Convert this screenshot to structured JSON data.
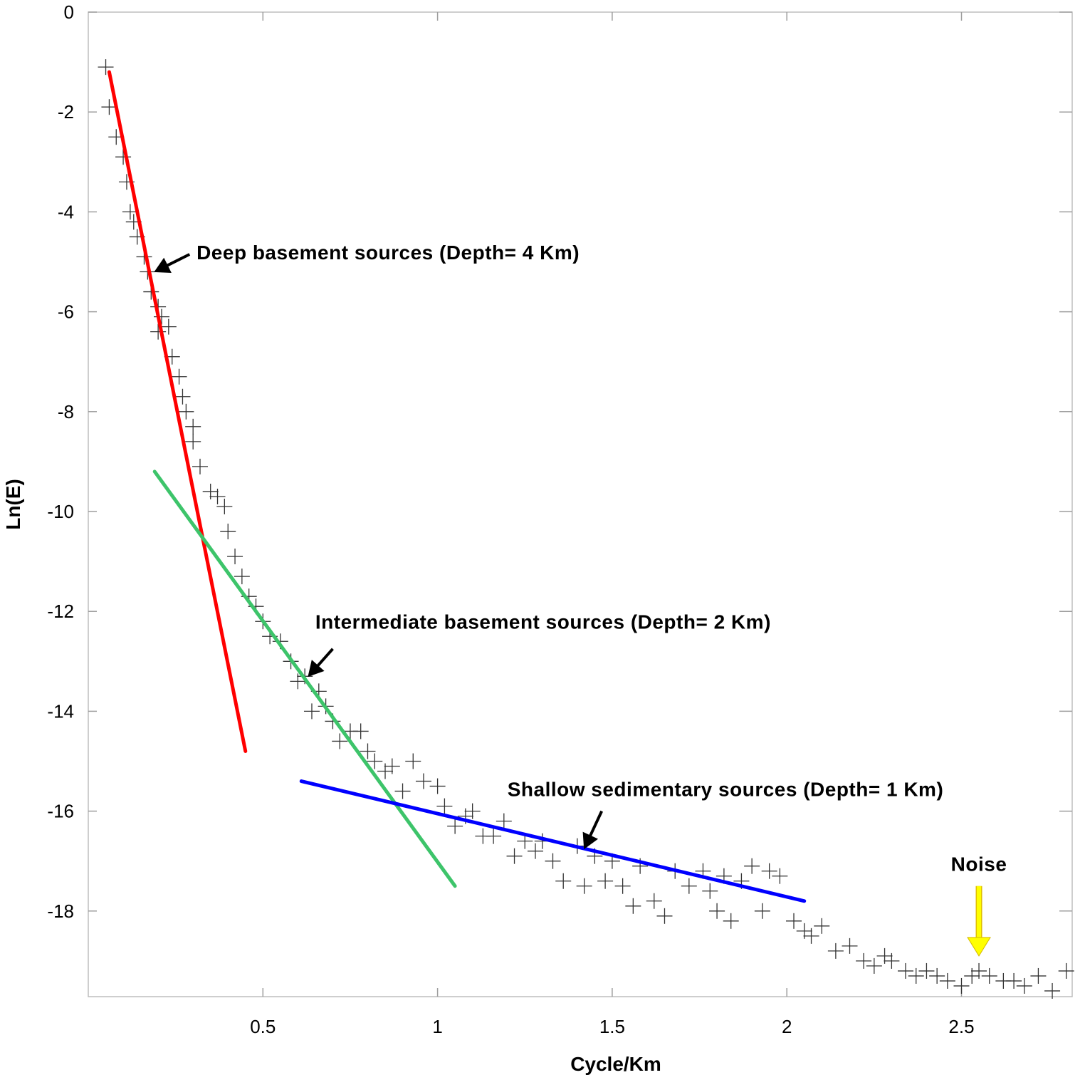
{
  "chart_data": {
    "type": "scatter",
    "title": "",
    "xlabel": "Cycle/Km",
    "ylabel": "Ln(E)",
    "xlim": [
      0,
      2.85
    ],
    "ylim": [
      -19.7,
      0
    ],
    "xticks": [
      0.5,
      1,
      1.5,
      2,
      2.5
    ],
    "xtick_labels": [
      "0.5",
      "1",
      "1.5",
      "2",
      "2.5"
    ],
    "yticks": [
      0,
      -2,
      -4,
      -6,
      -8,
      -10,
      -12,
      -14,
      -16,
      -18
    ],
    "ytick_labels": [
      "0",
      "-2",
      "-4",
      "-6",
      "-8",
      "-10",
      "-12",
      "-14",
      "-16",
      "-18"
    ],
    "grid": false,
    "marker": "plus",
    "points": [
      [
        0.05,
        -1.1
      ],
      [
        0.06,
        -1.9
      ],
      [
        0.08,
        -2.5
      ],
      [
        0.1,
        -2.9
      ],
      [
        0.11,
        -3.4
      ],
      [
        0.12,
        -4.0
      ],
      [
        0.13,
        -4.2
      ],
      [
        0.14,
        -4.5
      ],
      [
        0.16,
        -4.9
      ],
      [
        0.17,
        -5.2
      ],
      [
        0.18,
        -5.6
      ],
      [
        0.2,
        -5.9
      ],
      [
        0.2,
        -6.4
      ],
      [
        0.21,
        -6.1
      ],
      [
        0.23,
        -6.3
      ],
      [
        0.24,
        -6.9
      ],
      [
        0.26,
        -7.3
      ],
      [
        0.27,
        -7.7
      ],
      [
        0.28,
        -8.0
      ],
      [
        0.3,
        -8.3
      ],
      [
        0.3,
        -8.6
      ],
      [
        0.32,
        -9.1
      ],
      [
        0.35,
        -9.6
      ],
      [
        0.37,
        -9.7
      ],
      [
        0.39,
        -9.9
      ],
      [
        0.4,
        -10.4
      ],
      [
        0.42,
        -10.9
      ],
      [
        0.44,
        -11.3
      ],
      [
        0.46,
        -11.7
      ],
      [
        0.48,
        -11.9
      ],
      [
        0.5,
        -12.2
      ],
      [
        0.52,
        -12.5
      ],
      [
        0.55,
        -12.6
      ],
      [
        0.58,
        -13.0
      ],
      [
        0.6,
        -13.4
      ],
      [
        0.62,
        -13.3
      ],
      [
        0.64,
        -14.0
      ],
      [
        0.66,
        -13.6
      ],
      [
        0.68,
        -13.9
      ],
      [
        0.7,
        -14.2
      ],
      [
        0.72,
        -14.6
      ],
      [
        0.75,
        -14.4
      ],
      [
        0.78,
        -14.4
      ],
      [
        0.8,
        -14.8
      ],
      [
        0.82,
        -15.0
      ],
      [
        0.85,
        -15.2
      ],
      [
        0.87,
        -15.1
      ],
      [
        0.9,
        -15.6
      ],
      [
        0.93,
        -15.0
      ],
      [
        0.96,
        -15.4
      ],
      [
        1.0,
        -15.5
      ],
      [
        1.02,
        -15.9
      ],
      [
        1.05,
        -16.3
      ],
      [
        1.08,
        -16.1
      ],
      [
        1.1,
        -16.0
      ],
      [
        1.13,
        -16.5
      ],
      [
        1.16,
        -16.5
      ],
      [
        1.19,
        -16.2
      ],
      [
        1.22,
        -16.9
      ],
      [
        1.25,
        -16.6
      ],
      [
        1.28,
        -16.8
      ],
      [
        1.3,
        -16.6
      ],
      [
        1.33,
        -17.0
      ],
      [
        1.36,
        -17.4
      ],
      [
        1.4,
        -16.7
      ],
      [
        1.42,
        -17.5
      ],
      [
        1.45,
        -16.9
      ],
      [
        1.48,
        -17.4
      ],
      [
        1.5,
        -17.0
      ],
      [
        1.53,
        -17.5
      ],
      [
        1.56,
        -17.9
      ],
      [
        1.58,
        -17.1
      ],
      [
        1.62,
        -17.8
      ],
      [
        1.65,
        -18.1
      ],
      [
        1.68,
        -17.2
      ],
      [
        1.72,
        -17.5
      ],
      [
        1.76,
        -17.2
      ],
      [
        1.78,
        -17.6
      ],
      [
        1.8,
        -18.0
      ],
      [
        1.82,
        -17.3
      ],
      [
        1.84,
        -18.2
      ],
      [
        1.87,
        -17.4
      ],
      [
        1.9,
        -17.1
      ],
      [
        1.93,
        -18.0
      ],
      [
        1.95,
        -17.2
      ],
      [
        1.98,
        -17.3
      ],
      [
        2.02,
        -18.2
      ],
      [
        2.05,
        -18.4
      ],
      [
        2.07,
        -18.5
      ],
      [
        2.1,
        -18.3
      ],
      [
        2.14,
        -18.8
      ],
      [
        2.18,
        -18.7
      ],
      [
        2.22,
        -19.0
      ],
      [
        2.25,
        -19.1
      ],
      [
        2.28,
        -18.9
      ],
      [
        2.3,
        -19.0
      ],
      [
        2.34,
        -19.2
      ],
      [
        2.37,
        -19.3
      ],
      [
        2.4,
        -19.2
      ],
      [
        2.43,
        -19.3
      ],
      [
        2.46,
        -19.4
      ],
      [
        2.5,
        -19.5
      ],
      [
        2.53,
        -19.3
      ],
      [
        2.55,
        -19.2
      ],
      [
        2.58,
        -19.3
      ],
      [
        2.62,
        -19.4
      ],
      [
        2.65,
        -19.4
      ],
      [
        2.68,
        -19.5
      ],
      [
        2.72,
        -19.3
      ],
      [
        2.76,
        -19.6
      ],
      [
        2.8,
        -19.2
      ]
    ],
    "fit_lines": [
      {
        "color": "#ff0000",
        "x": [
          0.06,
          0.45
        ],
        "y": [
          -1.2,
          -14.8
        ]
      },
      {
        "color": "#3dc46a",
        "x": [
          0.19,
          1.05
        ],
        "y": [
          -9.2,
          -17.5
        ]
      },
      {
        "color": "#0000ff",
        "x": [
          0.61,
          2.05
        ],
        "y": [
          -15.4,
          -17.8
        ]
      }
    ],
    "annotations": [
      {
        "text": "Deep basement sources (Depth= 4 Km)",
        "color": "#000000",
        "arrow_color": "#000000",
        "text_at": [
          0.31,
          -4.95
        ],
        "arrow_from": [
          0.29,
          -4.85
        ],
        "arrow_to": [
          0.19,
          -5.2
        ]
      },
      {
        "text": "Intermediate basement sources (Depth= 2 Km)",
        "color": "#000000",
        "arrow_color": "#000000",
        "text_at": [
          0.65,
          -12.35
        ],
        "arrow_from": [
          0.7,
          -12.75
        ],
        "arrow_to": [
          0.63,
          -13.3
        ]
      },
      {
        "text": "Shallow sedimentary sources (Depth= 1 Km)",
        "color": "#000000",
        "arrow_color": "#000000",
        "text_at": [
          1.2,
          -15.7
        ],
        "arrow_from": [
          1.47,
          -16.0
        ],
        "arrow_to": [
          1.42,
          -16.75
        ]
      },
      {
        "text": "Noise",
        "color": "#000000",
        "arrow_color": "#ffff00",
        "text_at": [
          2.55,
          -17.2
        ],
        "arrow_from": [
          2.55,
          -17.5
        ],
        "arrow_to": [
          2.55,
          -18.9
        ]
      }
    ]
  }
}
